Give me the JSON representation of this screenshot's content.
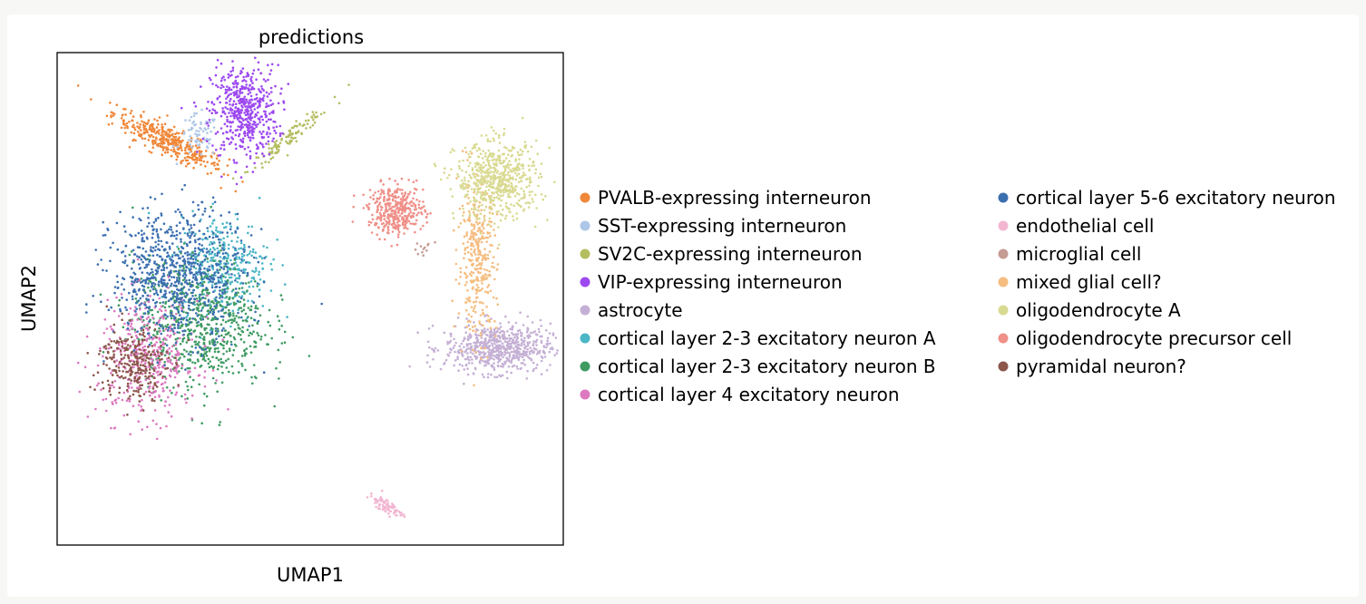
{
  "chart_data": {
    "type": "scatter",
    "title": "predictions",
    "xlabel": "UMAP1",
    "ylabel": "UMAP2",
    "x_ticks": [],
    "y_ticks": [],
    "legend_placement": "right, two columns",
    "series": [
      {
        "name": "PVALB-expressing interneuron",
        "color": "#f0883a",
        "clusters": [
          {
            "cx": 0.22,
            "cy": 0.82,
            "rx": 0.11,
            "ry": 0.025,
            "angle": -28,
            "n": 380
          }
        ]
      },
      {
        "name": "SST-expressing interneuron",
        "color": "#aec7e8",
        "clusters": [
          {
            "cx": 0.28,
            "cy": 0.83,
            "rx": 0.035,
            "ry": 0.04,
            "angle": 0,
            "n": 70
          }
        ]
      },
      {
        "name": "SV2C-expressing interneuron",
        "color": "#b5bd61",
        "clusters": [
          {
            "cx": 0.46,
            "cy": 0.83,
            "rx": 0.09,
            "ry": 0.012,
            "angle": 40,
            "n": 110
          }
        ]
      },
      {
        "name": "VIP-expressing interneuron",
        "color": "#9d49f0",
        "clusters": [
          {
            "cx": 0.37,
            "cy": 0.88,
            "rx": 0.06,
            "ry": 0.085,
            "angle": 0,
            "n": 520
          }
        ]
      },
      {
        "name": "astrocyte",
        "color": "#c5b0d5",
        "clusters": [
          {
            "cx": 0.87,
            "cy": 0.4,
            "rx": 0.095,
            "ry": 0.045,
            "angle": 0,
            "n": 650
          }
        ]
      },
      {
        "name": "cortical layer 2-3 excitatory neuron A",
        "color": "#4bb6c6",
        "clusters": [
          {
            "cx": 0.33,
            "cy": 0.57,
            "rx": 0.08,
            "ry": 0.09,
            "angle": 0,
            "n": 330
          }
        ]
      },
      {
        "name": "cortical layer 2-3 excitatory neuron B",
        "color": "#3f9b62",
        "clusters": [
          {
            "cx": 0.28,
            "cy": 0.45,
            "rx": 0.12,
            "ry": 0.12,
            "angle": 0,
            "n": 700
          }
        ]
      },
      {
        "name": "cortical layer 4 excitatory neuron",
        "color": "#dc79c1",
        "clusters": [
          {
            "cx": 0.18,
            "cy": 0.38,
            "rx": 0.09,
            "ry": 0.11,
            "angle": 0,
            "n": 420
          }
        ]
      },
      {
        "name": "cortical layer 5-6 excitatory neuron",
        "color": "#3b6fb0",
        "clusters": [
          {
            "cx": 0.24,
            "cy": 0.55,
            "rx": 0.12,
            "ry": 0.12,
            "angle": 0,
            "n": 800
          }
        ]
      },
      {
        "name": "endothelial cell",
        "color": "#f2b6d2",
        "clusters": [
          {
            "cx": 0.65,
            "cy": 0.08,
            "rx": 0.035,
            "ry": 0.012,
            "angle": -35,
            "n": 80
          }
        ]
      },
      {
        "name": "microglial cell",
        "color": "#c49c94",
        "clusters": [
          {
            "cx": 0.72,
            "cy": 0.6,
            "rx": 0.02,
            "ry": 0.02,
            "angle": 0,
            "n": 12
          }
        ]
      },
      {
        "name": "mixed glial cell?",
        "color": "#f5bd80",
        "clusters": [
          {
            "cx": 0.83,
            "cy": 0.58,
            "rx": 0.035,
            "ry": 0.14,
            "angle": 0,
            "n": 340
          }
        ]
      },
      {
        "name": "oligodendrocyte A",
        "color": "#d9da92",
        "clusters": [
          {
            "cx": 0.87,
            "cy": 0.74,
            "rx": 0.075,
            "ry": 0.07,
            "angle": 0,
            "n": 600
          }
        ]
      },
      {
        "name": "oligodendrocyte precursor cell",
        "color": "#ef9089",
        "clusters": [
          {
            "cx": 0.67,
            "cy": 0.68,
            "rx": 0.05,
            "ry": 0.045,
            "angle": 0,
            "n": 380
          }
        ]
      },
      {
        "name": "pyramidal neuron?",
        "color": "#8c564b",
        "clusters": [
          {
            "cx": 0.15,
            "cy": 0.37,
            "rx": 0.06,
            "ry": 0.07,
            "angle": 0,
            "n": 260
          }
        ]
      }
    ]
  }
}
